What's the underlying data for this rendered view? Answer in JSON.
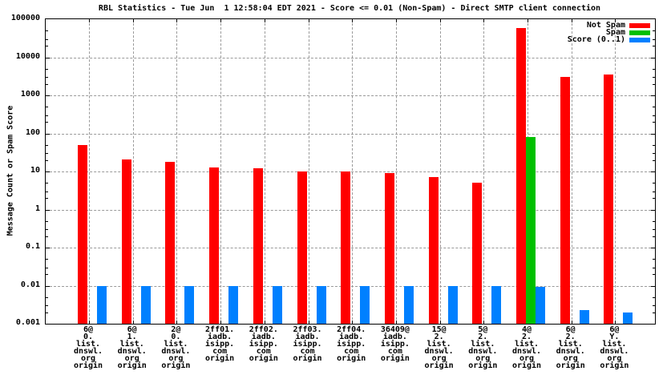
{
  "title": "RBL Statistics - Tue Jun  1 12:58:04 EDT 2021 - Score <= 0.01 (Non-Spam) - Direct SMTP client connection",
  "y_axis_title": "Message Count or Spam Score",
  "colors": {
    "not_spam": "#ff0000",
    "spam": "#00c000",
    "score": "#0080ff",
    "grid": "#9a9a9a",
    "axis": "#000000",
    "background": "#ffffff"
  },
  "legend": {
    "position": "top-right",
    "entries": [
      {
        "label": "Not Spam",
        "color": "#ff0000"
      },
      {
        "label": "Spam",
        "color": "#00c000"
      },
      {
        "label": "Score (0..1)",
        "color": "#0080ff"
      }
    ]
  },
  "chart_data": {
    "type": "bar",
    "yscale": "log",
    "ylim": [
      0.001,
      100000
    ],
    "grid": true,
    "legend_position": "top-right",
    "title": "RBL Statistics - Tue Jun  1 12:58:04 EDT 2021 - Score <= 0.01 (Non-Spam) - Direct SMTP client connection",
    "xlabel": "",
    "ylabel": "Message Count or Spam Score",
    "y_ticks": [
      {
        "value": 100000,
        "label": "100000"
      },
      {
        "value": 10000,
        "label": "10000"
      },
      {
        "value": 1000,
        "label": "1000"
      },
      {
        "value": 100,
        "label": "100"
      },
      {
        "value": 10,
        "label": "10"
      },
      {
        "value": 1,
        "label": "1"
      },
      {
        "value": 0.1,
        "label": "0.1"
      },
      {
        "value": 0.01,
        "label": "0.01"
      },
      {
        "value": 0.001,
        "label": "0.001"
      }
    ],
    "categories": [
      "6@0.list.dnswl.org origin",
      "6@1.list.dnswl.org origin",
      "2@0.list.dnswl.org origin",
      "2ff01.iadb.isipp.com origin",
      "2ff02.iadb.isipp.com origin",
      "2ff03.iadb.isipp.com origin",
      "2ff04.iadb.isipp.com origin",
      "36409@iadb.isipp.com origin",
      "15@2.list.dnswl.org origin",
      "5@2.list.dnswl.org origin",
      "4@2.list.dnswl.org origin",
      "6@2.list.dnswl.org origin",
      "6@Y.list.dnswl.org origin"
    ],
    "category_label_lines": [
      [
        "6@",
        "0.",
        "list.",
        "dnswl.",
        "org",
        "origin"
      ],
      [
        "6@",
        "1.",
        "list.",
        "dnswl.",
        "org",
        "origin"
      ],
      [
        "2@",
        "0.",
        "list.",
        "dnswl.",
        "org",
        "origin"
      ],
      [
        "2ff01.",
        "iadb.",
        "isipp.",
        "com",
        "origin"
      ],
      [
        "2ff02.",
        "iadb.",
        "isipp.",
        "com",
        "origin"
      ],
      [
        "2ff03.",
        "iadb.",
        "isipp.",
        "com",
        "origin"
      ],
      [
        "2ff04.",
        "iadb.",
        "isipp.",
        "com",
        "origin"
      ],
      [
        "36409@",
        "iadb.",
        "isipp.",
        "com",
        "origin"
      ],
      [
        "15@",
        "2.",
        "list.",
        "dnswl.",
        "org",
        "origin"
      ],
      [
        "5@",
        "2.",
        "list.",
        "dnswl.",
        "org",
        "origin"
      ],
      [
        "4@",
        "2.",
        "list.",
        "dnswl.",
        "org",
        "origin"
      ],
      [
        "6@",
        "2.",
        "list.",
        "dnswl.",
        "org",
        "origin"
      ],
      [
        "6@",
        "Y.",
        "list.",
        "dnswl.",
        "org",
        "origin"
      ]
    ],
    "series": [
      {
        "name": "Not Spam",
        "color": "#ff0000",
        "values": [
          50,
          21,
          18,
          13,
          12,
          10,
          10,
          9,
          7,
          5,
          60000,
          3000,
          3600
        ]
      },
      {
        "name": "Spam",
        "color": "#00c000",
        "values": [
          0,
          0,
          0,
          0,
          0,
          0,
          0,
          0,
          0,
          0,
          80,
          0,
          0
        ]
      },
      {
        "name": "Score (0..1)",
        "color": "#0080ff",
        "values": [
          0.01,
          0.01,
          0.01,
          0.01,
          0.01,
          0.01,
          0.01,
          0.01,
          0.01,
          0.01,
          0.0093,
          0.0023,
          0.002
        ]
      }
    ]
  }
}
